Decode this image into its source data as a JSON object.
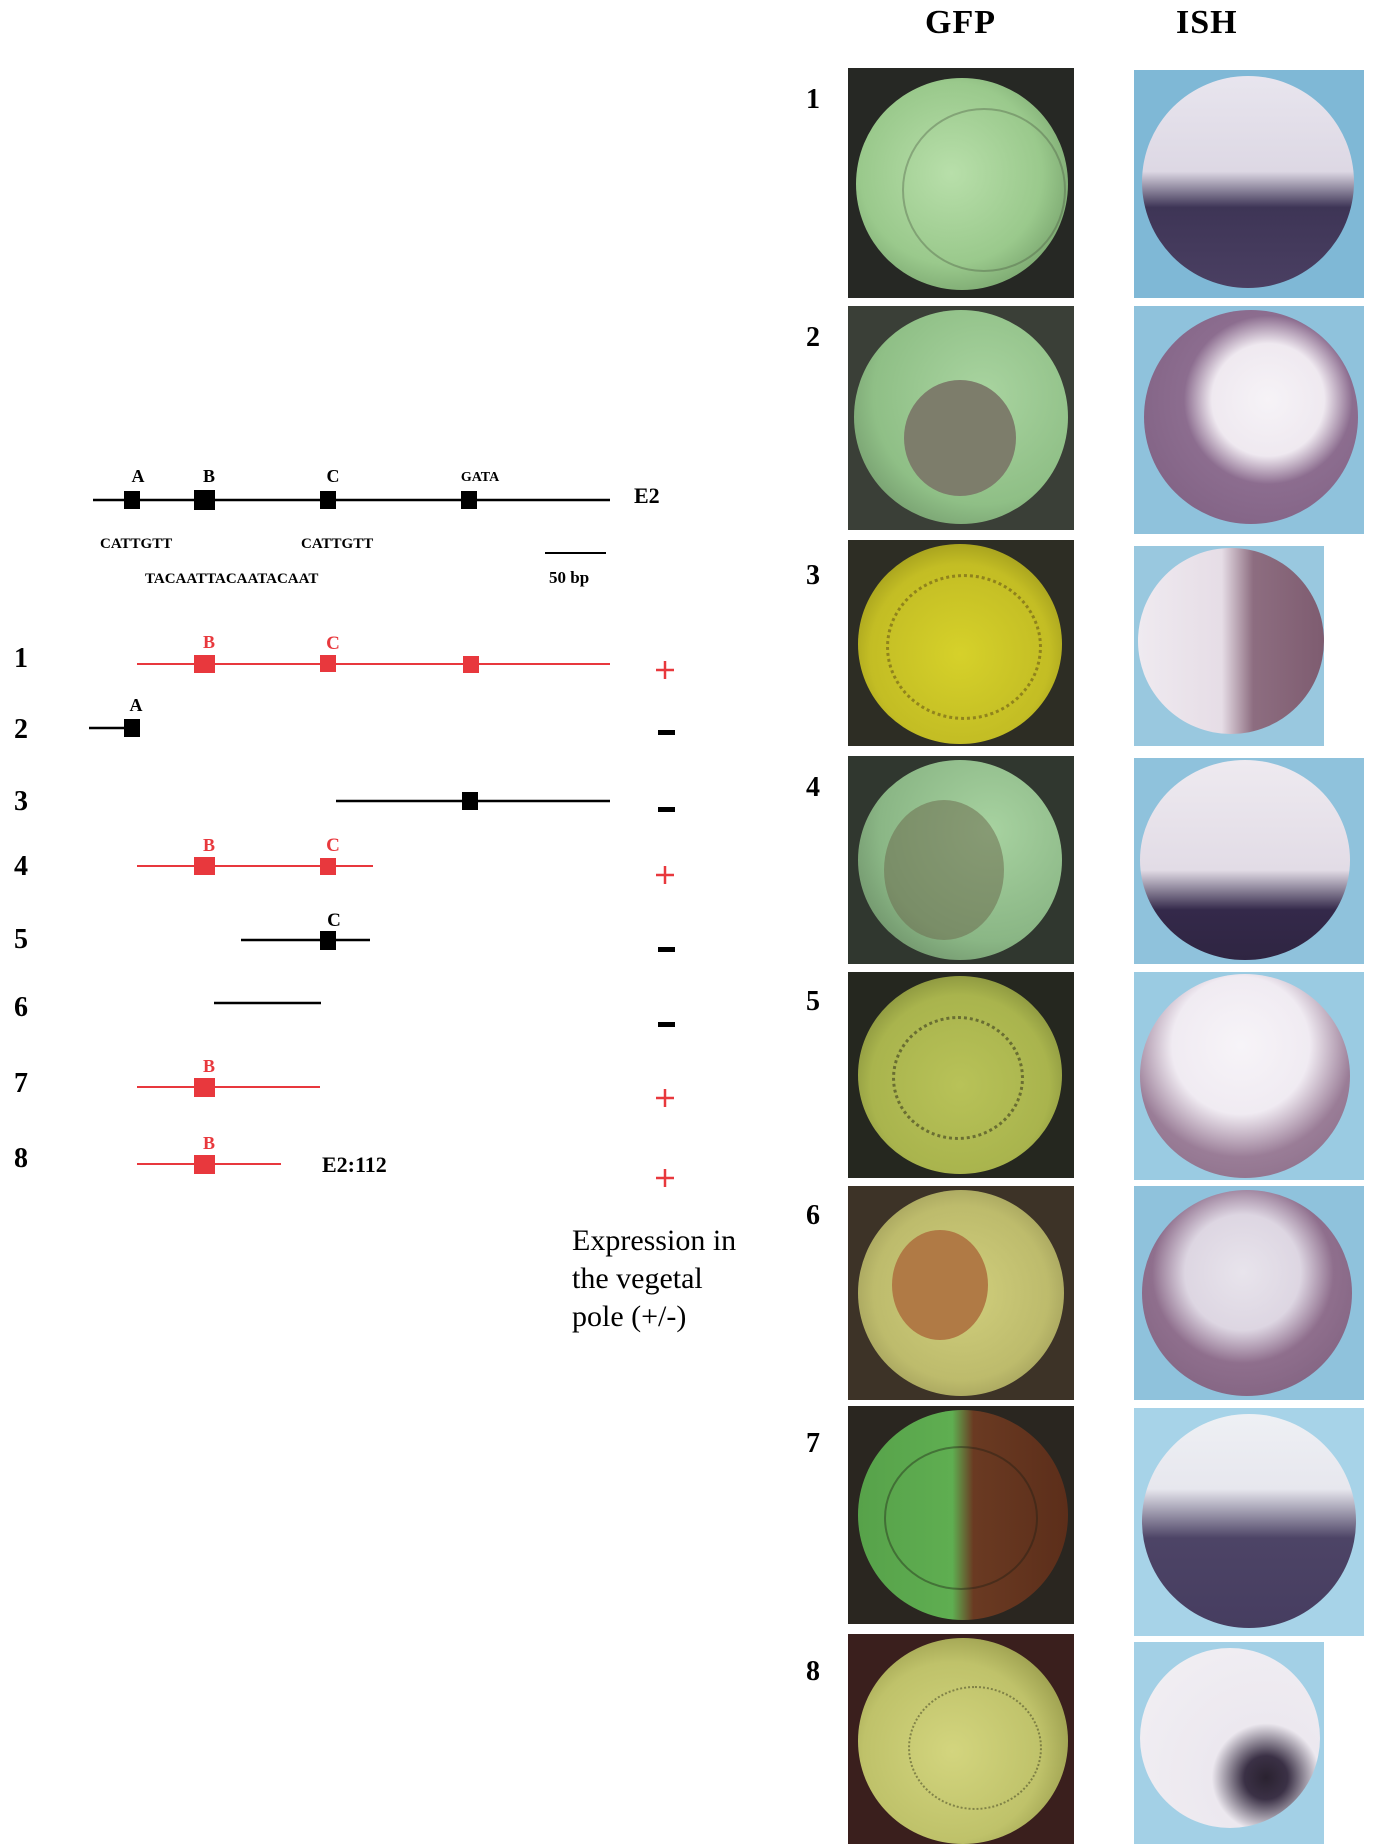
{
  "columns": {
    "gfp": "GFP",
    "ish": "ISH"
  },
  "map": {
    "name": "E2",
    "sites": [
      "A",
      "B",
      "C",
      "GATA"
    ],
    "motif_a": "CATTGTT",
    "motif_c": "CATTGTT",
    "motif_b": "TACAATTACAATACAAT",
    "scale": "50 bp"
  },
  "constructs": [
    {
      "num": "1",
      "sites": [
        "B",
        "C",
        ""
      ],
      "label": "",
      "result": "+"
    },
    {
      "num": "2",
      "sites": [
        "A"
      ],
      "label": "",
      "result": "-"
    },
    {
      "num": "3",
      "sites": [
        ""
      ],
      "label": "",
      "result": "-"
    },
    {
      "num": "4",
      "sites": [
        "B",
        "C"
      ],
      "label": "",
      "result": "+"
    },
    {
      "num": "5",
      "sites": [
        "C"
      ],
      "label": "",
      "result": "-"
    },
    {
      "num": "6",
      "sites": [],
      "label": "",
      "result": "-"
    },
    {
      "num": "7",
      "sites": [
        "B"
      ],
      "label": "",
      "result": "+"
    },
    {
      "num": "8",
      "sites": [
        "B"
      ],
      "label": "E2:112",
      "result": "+"
    }
  ],
  "legend": {
    "line1": "Expression in",
    "line2": "the vegetal",
    "line3": "pole (+/-)"
  },
  "colors": {
    "positive": "#e8383d",
    "negative": "#000000"
  },
  "photo_labels": [
    "1",
    "2",
    "3",
    "4",
    "5",
    "6",
    "7",
    "8"
  ]
}
